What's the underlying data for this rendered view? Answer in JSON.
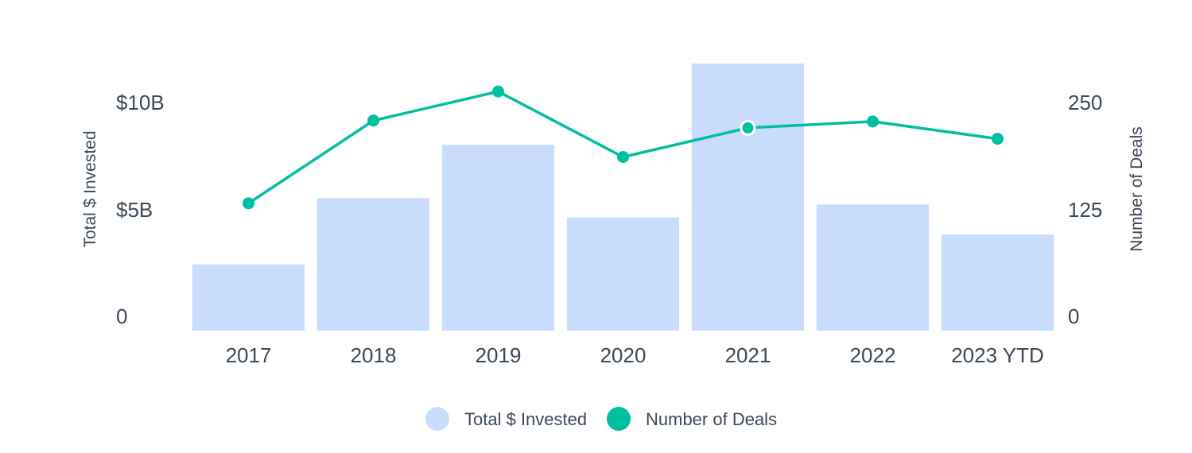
{
  "chart_data": {
    "type": "bar",
    "categories": [
      "2017",
      "2018",
      "2019",
      "2020",
      "2021",
      "2022",
      "2023 YTD"
    ],
    "series": [
      {
        "name": "Total $ Invested",
        "type": "bar",
        "axis": "left",
        "color": "#cadcfc",
        "values": [
          3.1,
          6.2,
          8.7,
          5.3,
          12.5,
          5.9,
          4.5
        ]
      },
      {
        "name": "Number of Deals",
        "type": "line",
        "axis": "right",
        "color": "#00bfa0",
        "values": [
          140,
          231,
          263,
          191,
          223,
          230,
          211
        ]
      }
    ],
    "left_axis": {
      "title": "Total $ Invested",
      "range": [
        0,
        12.5
      ],
      "ticks": [
        0,
        5,
        10
      ],
      "tick_labels": [
        "0",
        "$5B",
        "$10B"
      ]
    },
    "right_axis": {
      "title": "Number of Deals",
      "range": [
        0,
        250
      ],
      "ticks": [
        0,
        125,
        250
      ],
      "tick_labels": [
        "0",
        "125",
        "250"
      ]
    },
    "highlighted_point": {
      "series": "Number of Deals",
      "category": "2021"
    },
    "grid": false,
    "legend": {
      "position": "bottom-center"
    }
  }
}
